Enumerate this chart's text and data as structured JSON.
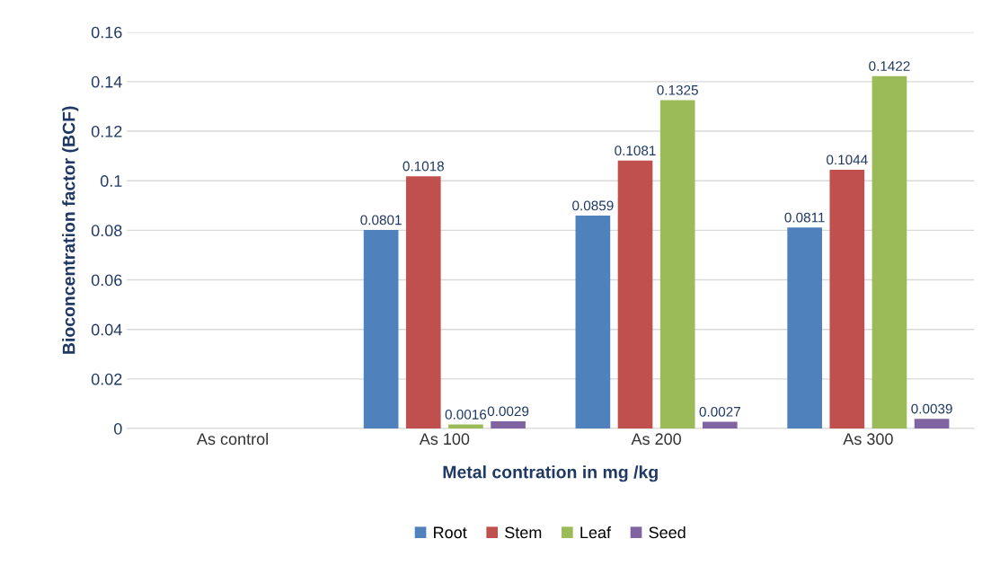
{
  "chart_data": {
    "type": "bar",
    "xlabel": "Metal contration in mg /kg",
    "ylabel": "Bioconcentration factor (BCF)",
    "categories": [
      "As control",
      "As 100",
      "As 200",
      "As 300"
    ],
    "series": [
      {
        "name": "Root",
        "color": "#4f81bd",
        "values": [
          null,
          0.0801,
          0.0859,
          0.0811
        ]
      },
      {
        "name": "Stem",
        "color": "#c0504d",
        "values": [
          null,
          0.1018,
          0.1081,
          0.1044
        ]
      },
      {
        "name": "Leaf",
        "color": "#9bbb59",
        "values": [
          null,
          0.0016,
          0.1325,
          0.1422
        ]
      },
      {
        "name": "Seed",
        "color": "#8064a2",
        "values": [
          null,
          0.0029,
          0.0027,
          0.0039
        ]
      }
    ],
    "ylim": [
      0,
      0.16
    ],
    "yticks": [
      0,
      0.02,
      0.04,
      0.06,
      0.08,
      0.1,
      0.12,
      0.14,
      0.16
    ],
    "grid": "y",
    "legend": "bottom",
    "data_labels": true
  }
}
